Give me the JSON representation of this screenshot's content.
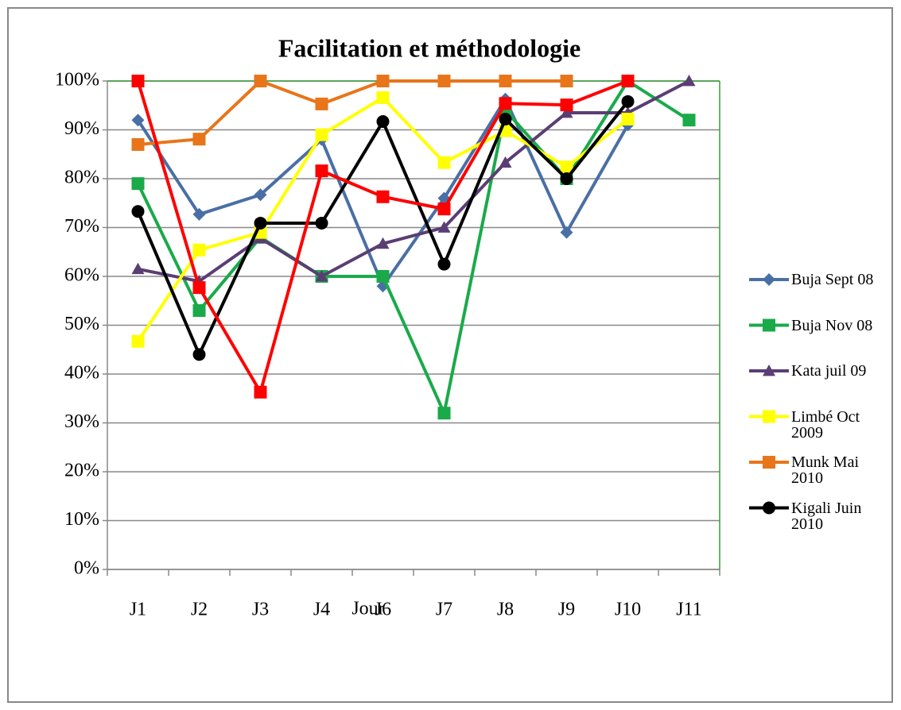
{
  "chart_data": {
    "type": "line",
    "title": "Facilitation et méthodologie",
    "x_label": "Jour",
    "categories": [
      "J1",
      "J2",
      "J3",
      "J4",
      "J6",
      "J7",
      "J8",
      "J9",
      "J10",
      "J11"
    ],
    "series": [
      {
        "name": "Buja Sept 08",
        "color": "#4a6fa5",
        "marker": "diamond",
        "values": [
          92,
          72.7,
          76.7,
          88,
          58,
          76,
          96.3,
          69,
          91,
          null
        ]
      },
      {
        "name": "Buja Nov 08",
        "color": "#1aaa4a",
        "marker": "square",
        "values": [
          79,
          53,
          68,
          60,
          60,
          32,
          94,
          80,
          100,
          92
        ]
      },
      {
        "name": "Kata juil 09",
        "color": "#5a3e73",
        "marker": "triangle",
        "values": [
          61.5,
          59,
          67.8,
          60,
          66.7,
          70,
          83.3,
          93.5,
          93.5,
          100
        ]
      },
      {
        "name": "Limbé Oct 2009",
        "color": "#ffff00",
        "marker": "square",
        "values": [
          46.7,
          65.4,
          69,
          89,
          96.6,
          83.3,
          89.8,
          82.4,
          92.2,
          null
        ]
      },
      {
        "name": "Munk Mai 2010",
        "color": "#e8751a",
        "marker": "square",
        "values": [
          87,
          88.1,
          100,
          95.3,
          100,
          100,
          100,
          100,
          null,
          null
        ]
      },
      {
        "name": "Kigali Juin 2010",
        "color": "#000000",
        "marker": "circle",
        "values": [
          73.3,
          44,
          70.9,
          70.9,
          91.7,
          62.5,
          92.2,
          80,
          95.8,
          null
        ]
      },
      {
        "color": "#ff0000",
        "marker": "square",
        "values": [
          100,
          57.7,
          36.3,
          81.6,
          76.3,
          73.8,
          95.4,
          95.1,
          100,
          null
        ]
      }
    ],
    "ylim": [
      0,
      100
    ],
    "yticks": [
      {
        "value": 0,
        "label": "0%"
      },
      {
        "value": 10,
        "label": "10%"
      },
      {
        "value": 20,
        "label": "20%"
      },
      {
        "value": 30,
        "label": "30%"
      },
      {
        "value": 40,
        "label": "40%"
      },
      {
        "value": 50,
        "label": "50%"
      },
      {
        "value": 60,
        "label": "60%"
      },
      {
        "value": 70,
        "label": "70%"
      },
      {
        "value": 80,
        "label": "80%"
      },
      {
        "value": 90,
        "label": "90%"
      },
      {
        "value": 100,
        "label": "100%"
      }
    ],
    "grid": true,
    "legend": "right"
  }
}
